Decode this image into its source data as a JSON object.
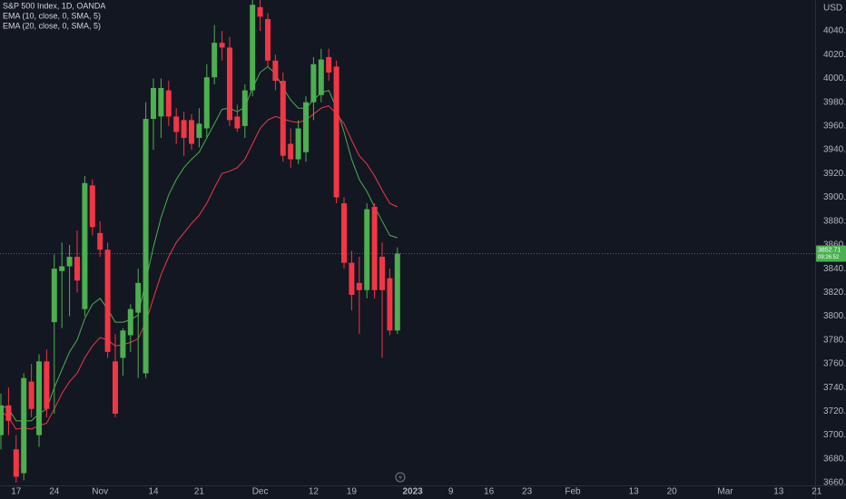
{
  "chart_data": {
    "type": "candlestick",
    "title": "S&P 500 Index, 1D, OANDA",
    "currency": "USD",
    "up_color": "#4caf50",
    "down_color": "#f23645",
    "grid": false,
    "categories": [
      null,
      null,
      "17",
      null,
      null,
      null,
      null,
      "24",
      null,
      null,
      null,
      null,
      null,
      "Nov",
      null,
      null,
      null,
      null,
      null,
      null,
      "14",
      null,
      null,
      null,
      null,
      null,
      "21",
      null,
      null,
      null,
      null,
      null,
      null,
      null,
      "Dec",
      null,
      null,
      null,
      null,
      null,
      null,
      "12",
      null,
      null,
      null,
      null,
      "19",
      null,
      null,
      null,
      null,
      null,
      null,
      null,
      "2023",
      null,
      null,
      null,
      null,
      "9",
      null,
      null,
      null,
      null,
      "16",
      null,
      null,
      null,
      null,
      "23",
      null,
      null,
      null,
      null,
      null,
      "Feb",
      null,
      null,
      null,
      null,
      null,
      null,
      null,
      "13",
      null,
      null,
      null,
      null,
      "20",
      null,
      null,
      null,
      null,
      null,
      null,
      "Mar",
      null,
      null,
      null,
      null,
      null,
      null,
      "13",
      null,
      null,
      null,
      null,
      "21"
    ],
    "open": [
      3700,
      3725,
      3688,
      3668,
      3745,
      3700,
      3762,
      3795,
      3838,
      3842,
      3850,
      3806,
      3910,
      3870,
      3856,
      3762,
      3765,
      3784,
      3803,
      3752,
      3966,
      3968,
      3990,
      3968,
      3965,
      3965,
      3950,
      3958,
      4001,
      4030,
      4026,
      3968,
      3960,
      3990,
      4060,
      4050,
      4015,
      3998,
      3945,
      3932,
      3938,
      3980,
      3986,
      4018,
      4010,
      3895,
      3845,
      3828,
      3822,
      3892,
      3850,
      3832,
      3788,
      null,
      null,
      null,
      null,
      null,
      null,
      null,
      null,
      null,
      null,
      null,
      null,
      null,
      null,
      null,
      null,
      null,
      null,
      null,
      null,
      null,
      null,
      null,
      null,
      null,
      null,
      null,
      null,
      null,
      null,
      null,
      null,
      null,
      null,
      null,
      null,
      null,
      null,
      null,
      null,
      null,
      null,
      null,
      null,
      null,
      null,
      null,
      null,
      null,
      null,
      null,
      null,
      null,
      null,
      null
    ],
    "high": [
      3735,
      3740,
      3700,
      3752,
      3760,
      3768,
      3772,
      3852,
      3862,
      3860,
      3872,
      3918,
      3915,
      3880,
      3862,
      3785,
      3790,
      3810,
      3840,
      3980,
      4000,
      4000,
      3998,
      3975,
      3972,
      3970,
      3975,
      4012,
      4045,
      4040,
      4035,
      3978,
      3995,
      4066,
      4066,
      4055,
      4020,
      4005,
      3958,
      3965,
      3985,
      4018,
      4025,
      4025,
      4015,
      3900,
      3855,
      3850,
      3895,
      3895,
      3862,
      3840,
      3858,
      null,
      null,
      null,
      null,
      null,
      null,
      null,
      null,
      null,
      null,
      null,
      null,
      null,
      null,
      null,
      null,
      null,
      null,
      null,
      null,
      null,
      null,
      null,
      null,
      null,
      null,
      null,
      null,
      null,
      null,
      null,
      null,
      null,
      null,
      null,
      null,
      null,
      null,
      null,
      null,
      null,
      null,
      null,
      null,
      null,
      null,
      null,
      null,
      null,
      null,
      null,
      null,
      null,
      null,
      null
    ],
    "low": [
      3688,
      3700,
      3660,
      3662,
      3715,
      3690,
      3715,
      3718,
      3790,
      3800,
      3820,
      3800,
      3868,
      3850,
      3765,
      3715,
      3750,
      3770,
      3748,
      3748,
      3940,
      3950,
      3960,
      3945,
      3935,
      3940,
      3942,
      3950,
      3995,
      4015,
      3960,
      3955,
      3950,
      3985,
      4040,
      4010,
      3990,
      3930,
      3925,
      3928,
      3930,
      3965,
      3980,
      3998,
      3895,
      3840,
      3805,
      3785,
      3815,
      3815,
      3765,
      3784,
      3785,
      null,
      null,
      null,
      null,
      null,
      null,
      null,
      null,
      null,
      null,
      null,
      null,
      null,
      null,
      null,
      null,
      null,
      null,
      null,
      null,
      null,
      null,
      null,
      null,
      null,
      null,
      null,
      null,
      null,
      null,
      null,
      null,
      null,
      null,
      null,
      null,
      null,
      null,
      null,
      null,
      null,
      null,
      null,
      null,
      null,
      null,
      null,
      null,
      null,
      null,
      null,
      null,
      null,
      null,
      null
    ],
    "close": [
      3725,
      3712,
      3665,
      3748,
      3722,
      3762,
      3722,
      3840,
      3842,
      3850,
      3830,
      3912,
      3875,
      3856,
      3770,
      3718,
      3788,
      3806,
      3828,
      3966,
      3992,
      3992,
      3968,
      3955,
      3950,
      3945,
      3962,
      4001,
      4030,
      4026,
      3965,
      3958,
      3990,
      4062,
      4052,
      4015,
      3998,
      3935,
      3932,
      3958,
      3980,
      4012,
      4016,
      4005,
      3900,
      3845,
      3818,
      3822,
      3890,
      3822,
      3822,
      3788,
      3852.71,
      null,
      null,
      null,
      null,
      null,
      null,
      null,
      null,
      null,
      null,
      null,
      null,
      null,
      null,
      null,
      null,
      null,
      null,
      null,
      null,
      null,
      null,
      null,
      null,
      null,
      null,
      null,
      null,
      null,
      null,
      null,
      null,
      null,
      null,
      null,
      null,
      null,
      null,
      null,
      null,
      null,
      null,
      null,
      null,
      null,
      null,
      null,
      null,
      null,
      null,
      null,
      null,
      null,
      null,
      null
    ],
    "series": [
      {
        "name": "EMA (10, close, 0, SMA, 5)",
        "color": "#4caf50",
        "values": [
          3725,
          3722,
          3712,
          3712,
          3712,
          3718,
          3722,
          3740,
          3755,
          3770,
          3780,
          3798,
          3810,
          3815,
          3806,
          3795,
          3795,
          3797,
          3801,
          3830,
          3858,
          3883,
          3902,
          3915,
          3925,
          3932,
          3938,
          3950,
          3962,
          3974,
          3975,
          3972,
          3976,
          3992,
          4005,
          4010,
          4004,
          3992,
          3982,
          3975,
          3975,
          3982,
          3988,
          3990,
          3975,
          3955,
          3932,
          3915,
          3905,
          3892,
          3880,
          3868,
          3866,
          null,
          null,
          null,
          null,
          null,
          null,
          null,
          null,
          null,
          null,
          null,
          null,
          null,
          null,
          null,
          null,
          null,
          null,
          null,
          null,
          null,
          null,
          null,
          null,
          null,
          null,
          null,
          null,
          null,
          null,
          null,
          null,
          null,
          null,
          null,
          null,
          null,
          null,
          null,
          null,
          null,
          null,
          null,
          null,
          null,
          null,
          null,
          null,
          null,
          null,
          null,
          null,
          null,
          null,
          null
        ]
      },
      {
        "name": "EMA (20, close, 0, SMA, 5)",
        "color": "#f23645",
        "values": [
          3720,
          3715,
          3705,
          3706,
          3705,
          3708,
          3710,
          3722,
          3735,
          3745,
          3752,
          3765,
          3775,
          3782,
          3780,
          3775,
          3776,
          3778,
          3781,
          3795,
          3815,
          3835,
          3850,
          3862,
          3870,
          3878,
          3885,
          3895,
          3908,
          3920,
          3922,
          3925,
          3932,
          3945,
          3958,
          3965,
          3968,
          3966,
          3964,
          3963,
          3965,
          3970,
          3975,
          3977,
          3970,
          3962,
          3948,
          3935,
          3928,
          3918,
          3906,
          3895,
          3892,
          null,
          null,
          null,
          null,
          null,
          null,
          null,
          null,
          null,
          null,
          null,
          null,
          null,
          null,
          null,
          null,
          null,
          null,
          null,
          null,
          null,
          null,
          null,
          null,
          null,
          null,
          null,
          null,
          null,
          null,
          null,
          null,
          null,
          null,
          null,
          null,
          null,
          null,
          null,
          null,
          null,
          null,
          null,
          null,
          null,
          null,
          null,
          null,
          null,
          null,
          null,
          null,
          null,
          null,
          null
        ]
      }
    ],
    "current_price": {
      "value": 3852.71,
      "label": "3852.71"
    },
    "countdown": "09:26:52",
    "ylim": [
      3657.7,
      4066
    ],
    "yticks": [
      {
        "value": 3660,
        "label": "3660.0"
      },
      {
        "value": 3680,
        "label": "3680.0"
      },
      {
        "value": 3700,
        "label": "3700.0"
      },
      {
        "value": 3720,
        "label": "3720.0"
      },
      {
        "value": 3740,
        "label": "3740.0"
      },
      {
        "value": 3760,
        "label": "3760.0"
      },
      {
        "value": 3780,
        "label": "3780.0"
      },
      {
        "value": 3800,
        "label": "3800.0"
      },
      {
        "value": 3820,
        "label": "3820.0"
      },
      {
        "value": 3840,
        "label": "3840.0"
      },
      {
        "value": 3860,
        "label": "3860.0"
      },
      {
        "value": 3880,
        "label": "3880.0"
      },
      {
        "value": 3900,
        "label": "3900.0"
      },
      {
        "value": 3920,
        "label": "3920.0"
      },
      {
        "value": 3940,
        "label": "3940.0"
      },
      {
        "value": 3960,
        "label": "3960.0"
      },
      {
        "value": 3980,
        "label": "3980.0"
      },
      {
        "value": 4000,
        "label": "4000.0"
      },
      {
        "value": 4020,
        "label": "4020.0"
      },
      {
        "value": 4040,
        "label": "4040.0"
      }
    ]
  }
}
